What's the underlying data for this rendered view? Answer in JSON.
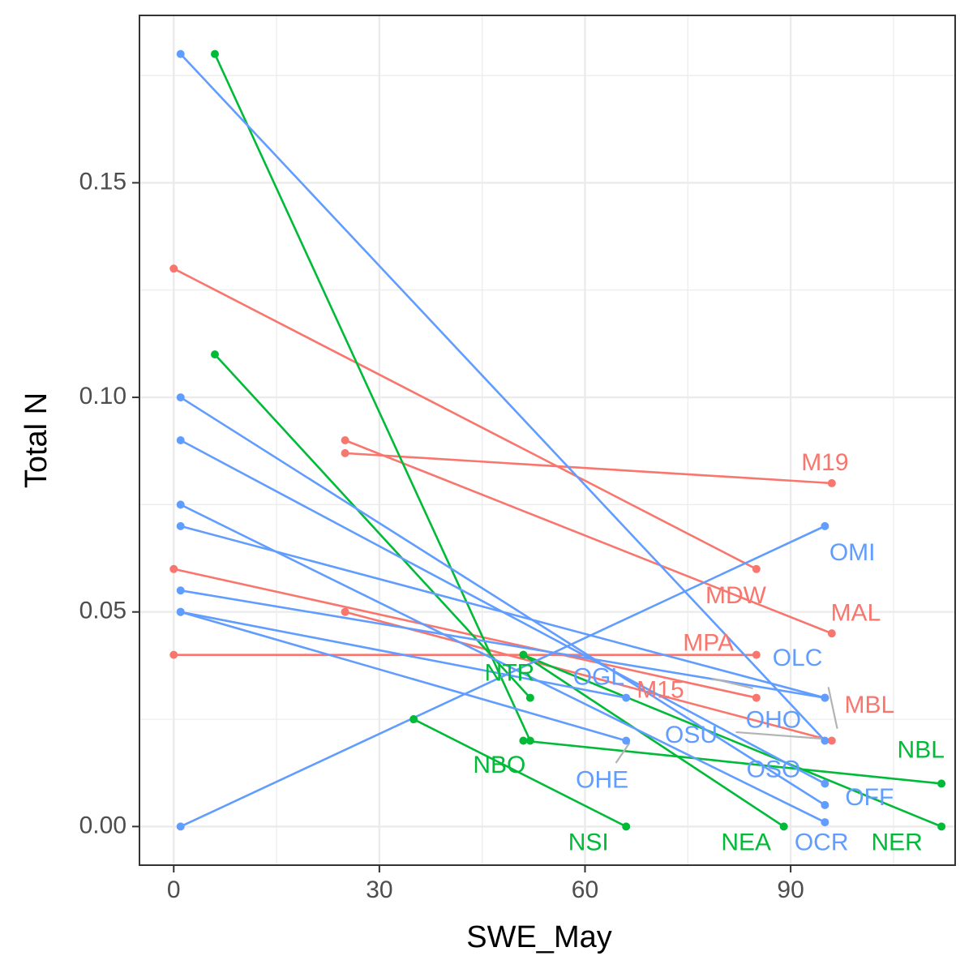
{
  "chart_data": {
    "type": "line",
    "xlabel": "SWE_May",
    "ylabel": "Total N",
    "xlim": [
      -5,
      114
    ],
    "ylim": [
      -0.009,
      0.189
    ],
    "x_ticks": [
      0,
      30,
      60,
      90
    ],
    "x_tick_labels": [
      "0",
      "30",
      "60",
      "90"
    ],
    "y_ticks": [
      0.0,
      0.05,
      0.1,
      0.15
    ],
    "y_tick_labels": [
      "0.00",
      "0.05",
      "0.10",
      "0.15"
    ],
    "grid": true,
    "legend": "none",
    "groups": [
      {
        "key": "M",
        "color": "#F8766D"
      },
      {
        "key": "N",
        "color": "#00BA38"
      },
      {
        "key": "O",
        "color": "#619CFF"
      }
    ],
    "segments": [
      {
        "group": "M",
        "x": [
          0,
          85
        ],
        "y": [
          0.13,
          0.06
        ]
      },
      {
        "group": "M",
        "x": [
          25,
          96
        ],
        "y": [
          0.09,
          0.045
        ]
      },
      {
        "group": "M",
        "x": [
          25,
          96
        ],
        "y": [
          0.087,
          0.08
        ]
      },
      {
        "group": "M",
        "x": [
          0,
          85
        ],
        "y": [
          0.06,
          0.03
        ]
      },
      {
        "group": "M",
        "x": [
          0,
          85
        ],
        "y": [
          0.04,
          0.04
        ]
      },
      {
        "group": "M",
        "x": [
          25,
          96
        ],
        "y": [
          0.05,
          0.02
        ]
      },
      {
        "group": "N",
        "x": [
          6,
          52
        ],
        "y": [
          0.18,
          0.02
        ]
      },
      {
        "group": "N",
        "x": [
          6,
          52
        ],
        "y": [
          0.11,
          0.03
        ]
      },
      {
        "group": "N",
        "x": [
          51,
          112
        ],
        "y": [
          0.04,
          0.0
        ]
      },
      {
        "group": "N",
        "x": [
          51,
          112
        ],
        "y": [
          0.02,
          0.01
        ]
      },
      {
        "group": "N",
        "x": [
          35,
          66
        ],
        "y": [
          0.025,
          0.0
        ]
      },
      {
        "group": "N",
        "x": [
          51,
          89
        ],
        "y": [
          0.04,
          0.0
        ]
      },
      {
        "group": "O",
        "x": [
          1,
          95
        ],
        "y": [
          0.18,
          0.02
        ]
      },
      {
        "group": "O",
        "x": [
          1,
          95
        ],
        "y": [
          0.1,
          0.005
        ]
      },
      {
        "group": "O",
        "x": [
          1,
          95
        ],
        "y": [
          0.09,
          0.01
        ]
      },
      {
        "group": "O",
        "x": [
          1,
          95
        ],
        "y": [
          0.075,
          0.001
        ]
      },
      {
        "group": "O",
        "x": [
          1,
          95
        ],
        "y": [
          0.07,
          0.03
        ]
      },
      {
        "group": "O",
        "x": [
          1,
          95
        ],
        "y": [
          0.055,
          0.03
        ]
      },
      {
        "group": "O",
        "x": [
          1,
          66
        ],
        "y": [
          0.05,
          0.03
        ]
      },
      {
        "group": "O",
        "x": [
          1,
          66
        ],
        "y": [
          0.05,
          0.02
        ]
      },
      {
        "group": "O",
        "x": [
          1,
          95
        ],
        "y": [
          0.0,
          0.07
        ]
      }
    ],
    "labels": [
      {
        "text": "M19",
        "group": "M",
        "x": 95,
        "y": 0.0845
      },
      {
        "text": "MDW",
        "group": "M",
        "x": 82,
        "y": 0.0535
      },
      {
        "text": "MAL",
        "group": "M",
        "x": 99.5,
        "y": 0.0495
      },
      {
        "text": "MPA",
        "group": "M",
        "x": 78,
        "y": 0.0425
      },
      {
        "text": "M15",
        "group": "M",
        "x": 71,
        "y": 0.0315
      },
      {
        "text": "MBL",
        "group": "M",
        "x": 101.5,
        "y": 0.028
      },
      {
        "text": "OMI",
        "group": "O",
        "x": 99,
        "y": 0.0635
      },
      {
        "text": "OLC",
        "group": "O",
        "x": 91,
        "y": 0.039
      },
      {
        "text": "OGL",
        "group": "O",
        "x": 62,
        "y": 0.0345
      },
      {
        "text": "OHO",
        "group": "O",
        "x": 87.5,
        "y": 0.0245
      },
      {
        "text": "OSU",
        "group": "O",
        "x": 75.5,
        "y": 0.021
      },
      {
        "text": "OHE",
        "group": "O",
        "x": 62.5,
        "y": 0.0105
      },
      {
        "text": "OSO",
        "group": "O",
        "x": 87.5,
        "y": 0.013
      },
      {
        "text": "OFF",
        "group": "O",
        "x": 101.5,
        "y": 0.0065
      },
      {
        "text": "OCR",
        "group": "O",
        "x": 94.5,
        "y": -0.004
      },
      {
        "text": "NTR",
        "group": "N",
        "x": 49,
        "y": 0.0355
      },
      {
        "text": "NBO",
        "group": "N",
        "x": 47.5,
        "y": 0.014
      },
      {
        "text": "NBL",
        "group": "N",
        "x": 109,
        "y": 0.0175
      },
      {
        "text": "NSI",
        "group": "N",
        "x": 60.5,
        "y": -0.004
      },
      {
        "text": "NEA",
        "group": "N",
        "x": 83.5,
        "y": -0.004
      },
      {
        "text": "NER",
        "group": "N",
        "x": 105.5,
        "y": -0.004
      }
    ],
    "connectors": [
      {
        "x": [
          95.5,
          96.8
        ],
        "y": [
          0.0325,
          0.0228
        ]
      },
      {
        "x": [
          82,
          96
        ],
        "y": [
          0.022,
          0.0203
        ]
      },
      {
        "x": [
          64.5,
          66.5
        ],
        "y": [
          0.0148,
          0.0195
        ]
      },
      {
        "x": [
          78.5,
          84.5
        ],
        "y": [
          0.0345,
          0.0322
        ]
      }
    ]
  }
}
